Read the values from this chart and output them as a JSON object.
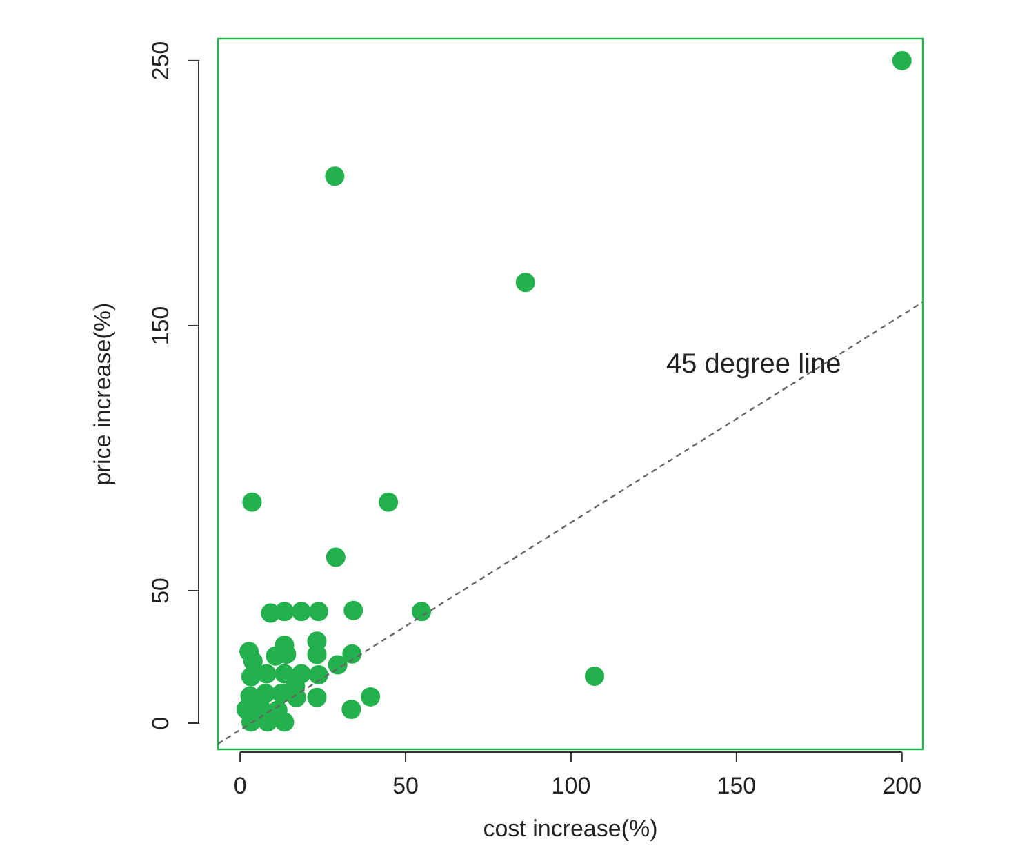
{
  "chart_data": {
    "type": "scatter",
    "xlabel": "cost increase(%)",
    "ylabel": "price increase(%)",
    "xlim": [
      -6.7,
      206.3
    ],
    "ylim": [
      -9.9,
      258.3
    ],
    "xticks": [
      0,
      50,
      100,
      150,
      200
    ],
    "yticks": [
      0,
      50,
      150,
      250
    ],
    "grid": false,
    "marker": "circle",
    "annotations": [
      "45 degree line"
    ],
    "series": [
      {
        "color": "#22b14c",
        "x": [
          200,
          28.6,
          86.2,
          3.6,
          44.8,
          28.9,
          107.1,
          54.8,
          34.2,
          9.2,
          13.4,
          18.5,
          23.7,
          2.7,
          3.9,
          13.4,
          14,
          10.7,
          23.2,
          23.2,
          33.8,
          29.5,
          3.3,
          8,
          13.4,
          18.5,
          23.7,
          16.7,
          3,
          7.7,
          12.5,
          17,
          23.2,
          39.4,
          1.8,
          6.3,
          33.6,
          3.3,
          8.3,
          13.4,
          11.4
        ],
        "values": [
          250,
          206.4,
          166.3,
          83.4,
          83.4,
          62.6,
          17.7,
          42.1,
          42.5,
          41.5,
          42.1,
          42.1,
          42.1,
          27,
          23.3,
          29.4,
          26,
          25.3,
          30.9,
          25.9,
          26.1,
          22,
          17.5,
          18.6,
          18.6,
          18.6,
          18.2,
          14,
          10.2,
          11.2,
          11.2,
          9.7,
          9.7,
          9.9,
          5.2,
          5.6,
          5.2,
          0.4,
          0.4,
          0.4,
          4.9
        ]
      },
      {
        "type": "line",
        "color": "#666666",
        "line_style": "dashed",
        "marker": "none",
        "x": [
          -6.7,
          206.3
        ],
        "values": [
          -7.8,
          158.9
        ]
      }
    ]
  }
}
